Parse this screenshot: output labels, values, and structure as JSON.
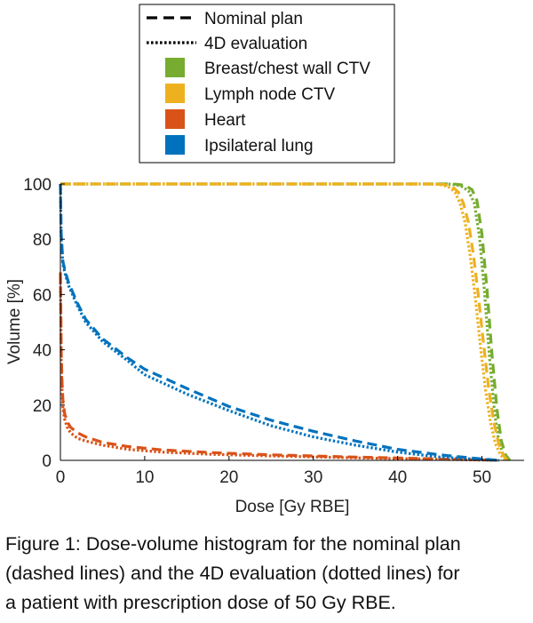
{
  "chart_data": {
    "type": "line",
    "xlabel": "Dose [Gy RBE]",
    "ylabel": "Volume [%]",
    "xlim": [
      0,
      55
    ],
    "ylim": [
      0,
      100
    ],
    "xticks": [
      "0",
      "10",
      "20",
      "30",
      "40",
      "50"
    ],
    "yticks": [
      "0",
      "20",
      "40",
      "60",
      "80",
      "100"
    ],
    "grid": false,
    "legend_position": "top",
    "line_style_legend": [
      {
        "label": "Nominal plan",
        "style": "dashed"
      },
      {
        "label": "4D evaluation",
        "style": "dotted"
      }
    ],
    "series": [
      {
        "name": "Breast/chest wall CTV",
        "color": "#77ac30",
        "nominal": {
          "x": [
            0,
            46,
            47,
            48,
            48.8,
            49.4,
            50,
            50.6,
            51.2,
            51.8,
            52.3,
            52.8,
            53.3
          ],
          "y": [
            100,
            100,
            99.9,
            99.5,
            98,
            94,
            82,
            62,
            38,
            18,
            7,
            2,
            0
          ]
        },
        "evaluation": {
          "x": [
            0,
            45.5,
            46.5,
            47.5,
            48.4,
            49.1,
            49.7,
            50.3,
            50.9,
            51.5,
            52,
            52.5,
            53
          ],
          "y": [
            100,
            100,
            99.9,
            99.3,
            97.5,
            93,
            81,
            61,
            37,
            17,
            7,
            2,
            0
          ]
        }
      },
      {
        "name": "Lymph node CTV",
        "color": "#edb120",
        "nominal": {
          "x": [
            0,
            44,
            45.5,
            46.5,
            47.2,
            47.8,
            48.4,
            49,
            49.6,
            50.2,
            50.8,
            51.4,
            52,
            52.5,
            53
          ],
          "y": [
            100,
            100,
            99.8,
            99,
            97,
            93,
            86,
            74,
            59,
            42,
            26,
            14,
            6,
            2,
            0
          ]
        },
        "evaluation": {
          "x": [
            0,
            43.5,
            45,
            46,
            46.8,
            47.4,
            48,
            48.6,
            49.2,
            49.8,
            50.4,
            51,
            51.6,
            52.2,
            52.8
          ],
          "y": [
            100,
            100,
            99.8,
            99,
            97,
            93,
            86,
            74,
            59,
            42,
            26,
            14,
            6,
            2,
            0
          ]
        }
      },
      {
        "name": "Heart",
        "color": "#d95319",
        "nominal": {
          "x": [
            0,
            0.05,
            0.1,
            0.2,
            0.3,
            0.5,
            0.8,
            1.2,
            2,
            3,
            5,
            8,
            12,
            18,
            25,
            35,
            45,
            50,
            52
          ],
          "y": [
            68,
            55,
            40,
            28,
            22,
            17,
            14,
            12,
            10,
            8.5,
            6.5,
            5,
            3.8,
            2.8,
            2,
            1.2,
            0.5,
            0.2,
            0
          ]
        },
        "evaluation": {
          "x": [
            0,
            0.05,
            0.1,
            0.2,
            0.3,
            0.5,
            0.8,
            1.2,
            2,
            3,
            5,
            8,
            12,
            18,
            25,
            35,
            45,
            50,
            52
          ],
          "y": [
            66,
            52,
            37,
            25,
            19,
            15,
            12,
            10,
            8,
            7,
            5.5,
            4,
            3,
            2.2,
            1.6,
            0.9,
            0.4,
            0.1,
            0
          ]
        }
      },
      {
        "name": "Ipsilateral lung",
        "color": "#0072bd",
        "nominal": {
          "x": [
            0,
            0.1,
            0.3,
            0.6,
            1,
            2,
            3,
            5,
            8,
            10,
            15,
            20,
            25,
            30,
            35,
            40,
            45,
            50,
            52
          ],
          "y": [
            100,
            82,
            72,
            68,
            64,
            57,
            51,
            44,
            37,
            33,
            26,
            19.5,
            14.5,
            10.5,
            7,
            4,
            2,
            0.5,
            0
          ]
        },
        "evaluation": {
          "x": [
            0,
            0.1,
            0.3,
            0.6,
            1,
            2,
            3,
            5,
            8,
            10,
            15,
            20,
            25,
            30,
            35,
            40,
            45,
            50,
            52
          ],
          "y": [
            100,
            80,
            71,
            67,
            63,
            56,
            50,
            43,
            36,
            31,
            24,
            18,
            12.5,
            8.5,
            5.5,
            3,
            1.2,
            0.3,
            0
          ]
        }
      }
    ]
  },
  "caption": {
    "line1": "Figure 1: Dose-volume histogram for the nominal plan",
    "line2": "(dashed lines) and the 4D evaluation (dotted lines) for",
    "line3": "a patient with prescription dose of 50 Gy RBE."
  }
}
